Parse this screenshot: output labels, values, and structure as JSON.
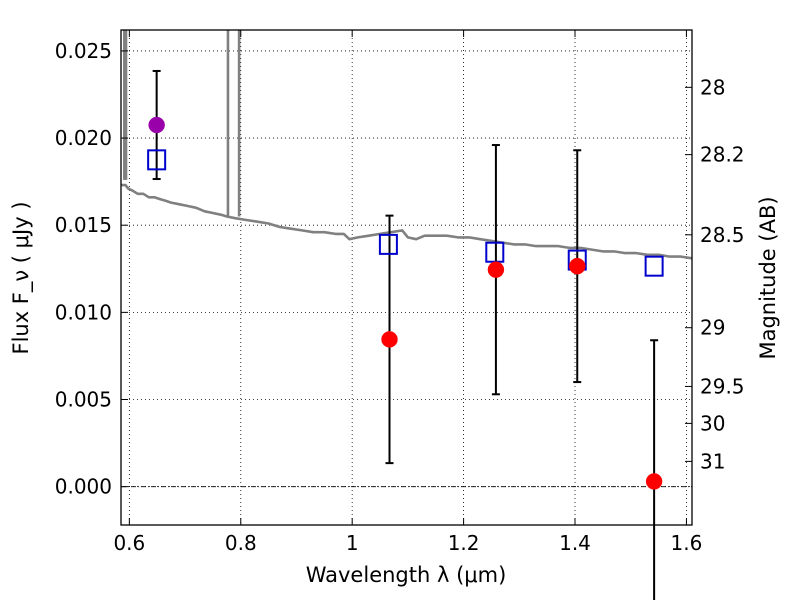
{
  "chart_data": {
    "type": "scatter",
    "xlabel": "Wavelength  λ (μm)",
    "ylabel": "Flux  F_ν  ( μJy )",
    "y2label": "Magnitude (AB)",
    "xlim": [
      0.585,
      1.61
    ],
    "ylim": [
      -0.0022,
      0.0262
    ],
    "grid": true,
    "x_ticks": [
      {
        "value": 0.6,
        "label": "0.6"
      },
      {
        "value": 0.8,
        "label": "0.8"
      },
      {
        "value": 1.0,
        "label": "1"
      },
      {
        "value": 1.2,
        "label": "1.2"
      },
      {
        "value": 1.4,
        "label": "1.4"
      },
      {
        "value": 1.6,
        "label": "1.6"
      }
    ],
    "y_ticks": [
      {
        "value": 0.0,
        "label": "0.000"
      },
      {
        "value": 0.005,
        "label": "0.005"
      },
      {
        "value": 0.01,
        "label": "0.010"
      },
      {
        "value": 0.015,
        "label": "0.015"
      },
      {
        "value": 0.02,
        "label": "0.020"
      },
      {
        "value": 0.025,
        "label": "0.025"
      }
    ],
    "y2_ticks": [
      {
        "flux": 0.02291,
        "label": "28"
      },
      {
        "flux": 0.01905,
        "label": "28.2"
      },
      {
        "flux": 0.01445,
        "label": "28.5"
      },
      {
        "flux": 0.00912,
        "label": "29"
      },
      {
        "flux": 0.00575,
        "label": "29.5"
      },
      {
        "flux": 0.00363,
        "label": "30"
      },
      {
        "flux": 0.00145,
        "label": "31"
      }
    ],
    "series": [
      {
        "kind": "line",
        "color": "#808080",
        "points": [
          [
            0.585,
            0.0173
          ],
          [
            0.593,
            0.0173
          ],
          [
            0.598,
            0.0171
          ],
          [
            0.605,
            0.017
          ],
          [
            0.615,
            0.0168
          ],
          [
            0.625,
            0.0168
          ],
          [
            0.635,
            0.0166
          ],
          [
            0.645,
            0.0166
          ],
          [
            0.655,
            0.0165
          ],
          [
            0.665,
            0.0164
          ],
          [
            0.675,
            0.0163
          ],
          [
            0.69,
            0.0162
          ],
          [
            0.705,
            0.0161
          ],
          [
            0.72,
            0.016
          ],
          [
            0.735,
            0.0158
          ],
          [
            0.75,
            0.0157
          ],
          [
            0.765,
            0.0156
          ],
          [
            0.775,
            0.0155
          ],
          [
            0.79,
            0.0154
          ],
          [
            0.81,
            0.0153
          ],
          [
            0.83,
            0.0152
          ],
          [
            0.85,
            0.0151
          ],
          [
            0.87,
            0.0149
          ],
          [
            0.89,
            0.0148
          ],
          [
            0.91,
            0.0147
          ],
          [
            0.93,
            0.0146
          ],
          [
            0.95,
            0.0146
          ],
          [
            0.97,
            0.0145
          ],
          [
            0.985,
            0.0145
          ],
          [
            0.995,
            0.0142
          ],
          [
            1.01,
            0.0143
          ],
          [
            1.03,
            0.0144
          ],
          [
            1.05,
            0.0145
          ],
          [
            1.07,
            0.0146
          ],
          [
            1.09,
            0.0147
          ],
          [
            1.1,
            0.0143
          ],
          [
            1.115,
            0.0142
          ],
          [
            1.13,
            0.0144
          ],
          [
            1.15,
            0.0144
          ],
          [
            1.17,
            0.0144
          ],
          [
            1.19,
            0.0143
          ],
          [
            1.21,
            0.0143
          ],
          [
            1.23,
            0.0142
          ],
          [
            1.25,
            0.0141
          ],
          [
            1.27,
            0.014
          ],
          [
            1.29,
            0.0139
          ],
          [
            1.31,
            0.0139
          ],
          [
            1.33,
            0.0138
          ],
          [
            1.35,
            0.0138
          ],
          [
            1.37,
            0.0138
          ],
          [
            1.39,
            0.0137
          ],
          [
            1.41,
            0.0137
          ],
          [
            1.43,
            0.0136
          ],
          [
            1.45,
            0.0135
          ],
          [
            1.47,
            0.0135
          ],
          [
            1.49,
            0.0134
          ],
          [
            1.51,
            0.0134
          ],
          [
            1.53,
            0.0133
          ],
          [
            1.55,
            0.0133
          ],
          [
            1.57,
            0.0132
          ],
          [
            1.59,
            0.0132
          ],
          [
            1.61,
            0.0131
          ]
        ],
        "spikes": [
          {
            "x": 0.591,
            "bottom": 0.0176,
            "top": 0.0262
          },
          {
            "x": 0.594,
            "bottom": 0.0176,
            "top": 0.0262
          },
          {
            "x": 0.777,
            "bottom": 0.0155,
            "top": 0.0262
          },
          {
            "x": 0.797,
            "bottom": 0.0155,
            "top": 0.0262
          }
        ]
      },
      {
        "kind": "open-square",
        "color": "#0000cc",
        "points": [
          {
            "x": 0.649,
            "y": 0.01875
          },
          {
            "x": 1.065,
            "y": 0.0139
          },
          {
            "x": 1.256,
            "y": 0.01345
          },
          {
            "x": 1.404,
            "y": 0.013
          },
          {
            "x": 1.542,
            "y": 0.01265
          }
        ]
      },
      {
        "kind": "filled-circle",
        "points": [
          {
            "x": 0.649,
            "y": 0.02075,
            "err": 0.0031,
            "color": "#9900aa"
          },
          {
            "x": 1.067,
            "y": 0.00845,
            "err": 0.0071,
            "color": "#ff0000"
          },
          {
            "x": 1.258,
            "y": 0.01245,
            "err": 0.00715,
            "color": "#ff0000"
          },
          {
            "x": 1.404,
            "y": 0.01265,
            "err": 0.00665,
            "color": "#ff0000"
          },
          {
            "x": 1.542,
            "y": 0.0003,
            "err": 0.0081,
            "color": "#ff0000"
          }
        ]
      }
    ]
  }
}
